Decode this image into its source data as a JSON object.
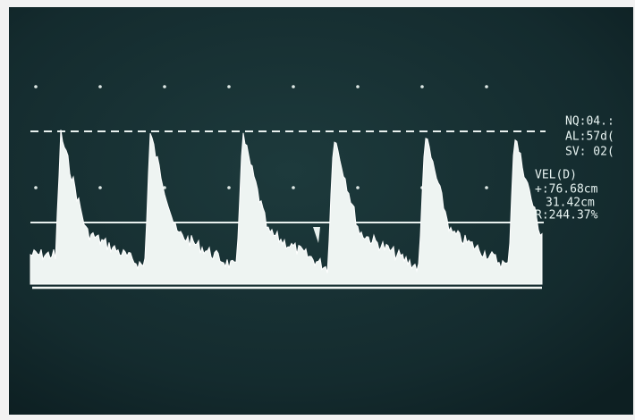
{
  "settings": [
    "NQ:04.:",
    "AL:57d(",
    "SV: 02("
  ],
  "measurement": {
    "title": "VEL(D)",
    "lines": [
      "+:76.68cm",
      "31.42cm",
      "R:244.37%"
    ]
  }
}
